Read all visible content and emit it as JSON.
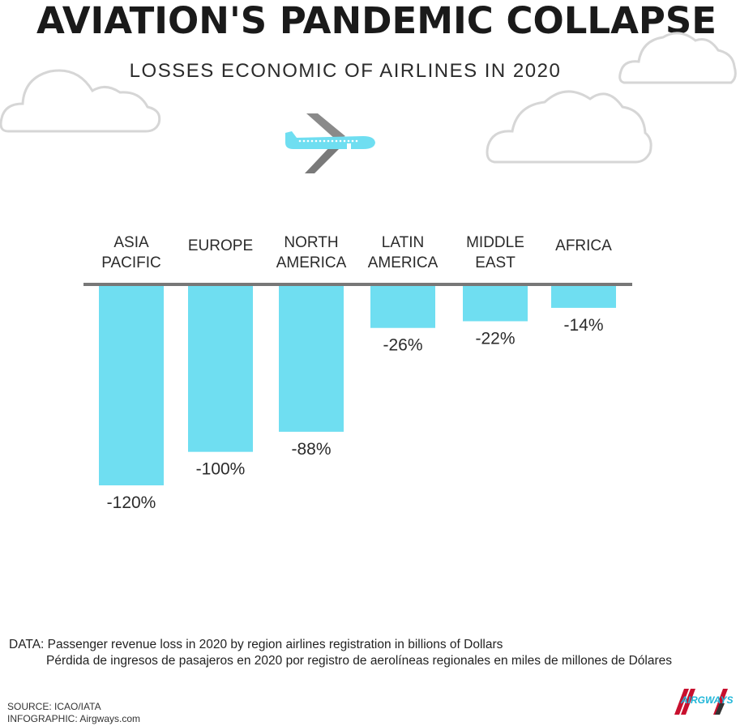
{
  "header": {
    "title": "AVIATION'S PANDEMIC COLLAPSE",
    "subtitle": "LOSSES ECONOMIC OF AIRLINES IN 2020"
  },
  "colors": {
    "bar": "#6fdef1",
    "axis": "#777777",
    "plane_body": "#6fdef1",
    "plane_wing": "#7a7a7a",
    "logo_red": "#c8102e",
    "logo_blue": "#1fb6d8"
  },
  "chart_data": {
    "type": "bar",
    "title": "LOSSES ECONOMIC OF AIRLINES IN 2020",
    "categories": [
      [
        "ASIA",
        "PACIFIC"
      ],
      [
        "EUROPE"
      ],
      [
        "NORTH",
        "AMERICA"
      ],
      [
        "LATIN",
        "AMERICA"
      ],
      [
        "MIDDLE",
        "EAST"
      ],
      [
        "AFRICA"
      ]
    ],
    "values": [
      -120,
      -100,
      -88,
      -26,
      -22,
      -14
    ],
    "value_labels": [
      "-120%",
      "-100%",
      "-88%",
      "-26%",
      "-22%",
      "-14%"
    ],
    "ylim": [
      -120,
      0
    ],
    "grid": false,
    "legend": "none"
  },
  "notes": {
    "data_en": "DATA: Passenger revenue loss in 2020 by region airlines registration in billions of Dollars",
    "data_es": "Pérdida de ingresos de pasajeros en 2020 por registro de aerolíneas regionales en miles de millones de Dólares",
    "source": "SOURCE: ICAO/IATA",
    "infographic": "INFOGRAPHIC: Airgways.com"
  },
  "logo": {
    "text": "AIRGWAYS"
  },
  "icons": [
    "cloud-icon",
    "airplane-icon",
    "airgways-logo"
  ]
}
